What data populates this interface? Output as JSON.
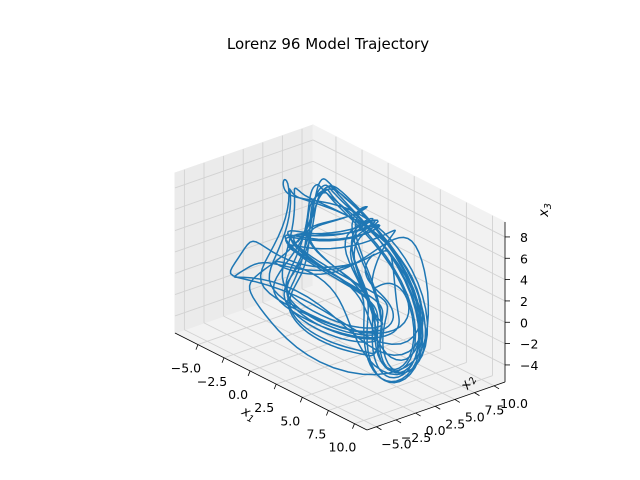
{
  "chart_data": {
    "type": "line",
    "projection": "3d",
    "title": "Lorenz 96 Model Trajectory",
    "xlabel": {
      "base": "x",
      "sub": "1"
    },
    "ylabel": {
      "base": "x",
      "sub": "2"
    },
    "zlabel": {
      "base": "x",
      "sub": "3"
    },
    "x_ticks": [
      "−5.0",
      "−2.5",
      "0.0",
      "2.5",
      "5.0",
      "7.5",
      "10.0"
    ],
    "y_ticks": [
      "−5.0",
      "−2.5",
      "0.0",
      "2.5",
      "5.0",
      "7.5",
      "10.0"
    ],
    "z_ticks": [
      "−4",
      "−2",
      "0",
      "2",
      "4",
      "6",
      "8"
    ],
    "xlim": [
      -7.2,
      11.2
    ],
    "ylim": [
      -6.2,
      11.4
    ],
    "zlim": [
      -5.6,
      9.4
    ],
    "grid": true,
    "series": [
      {
        "color": "#1f77b4"
      }
    ]
  }
}
